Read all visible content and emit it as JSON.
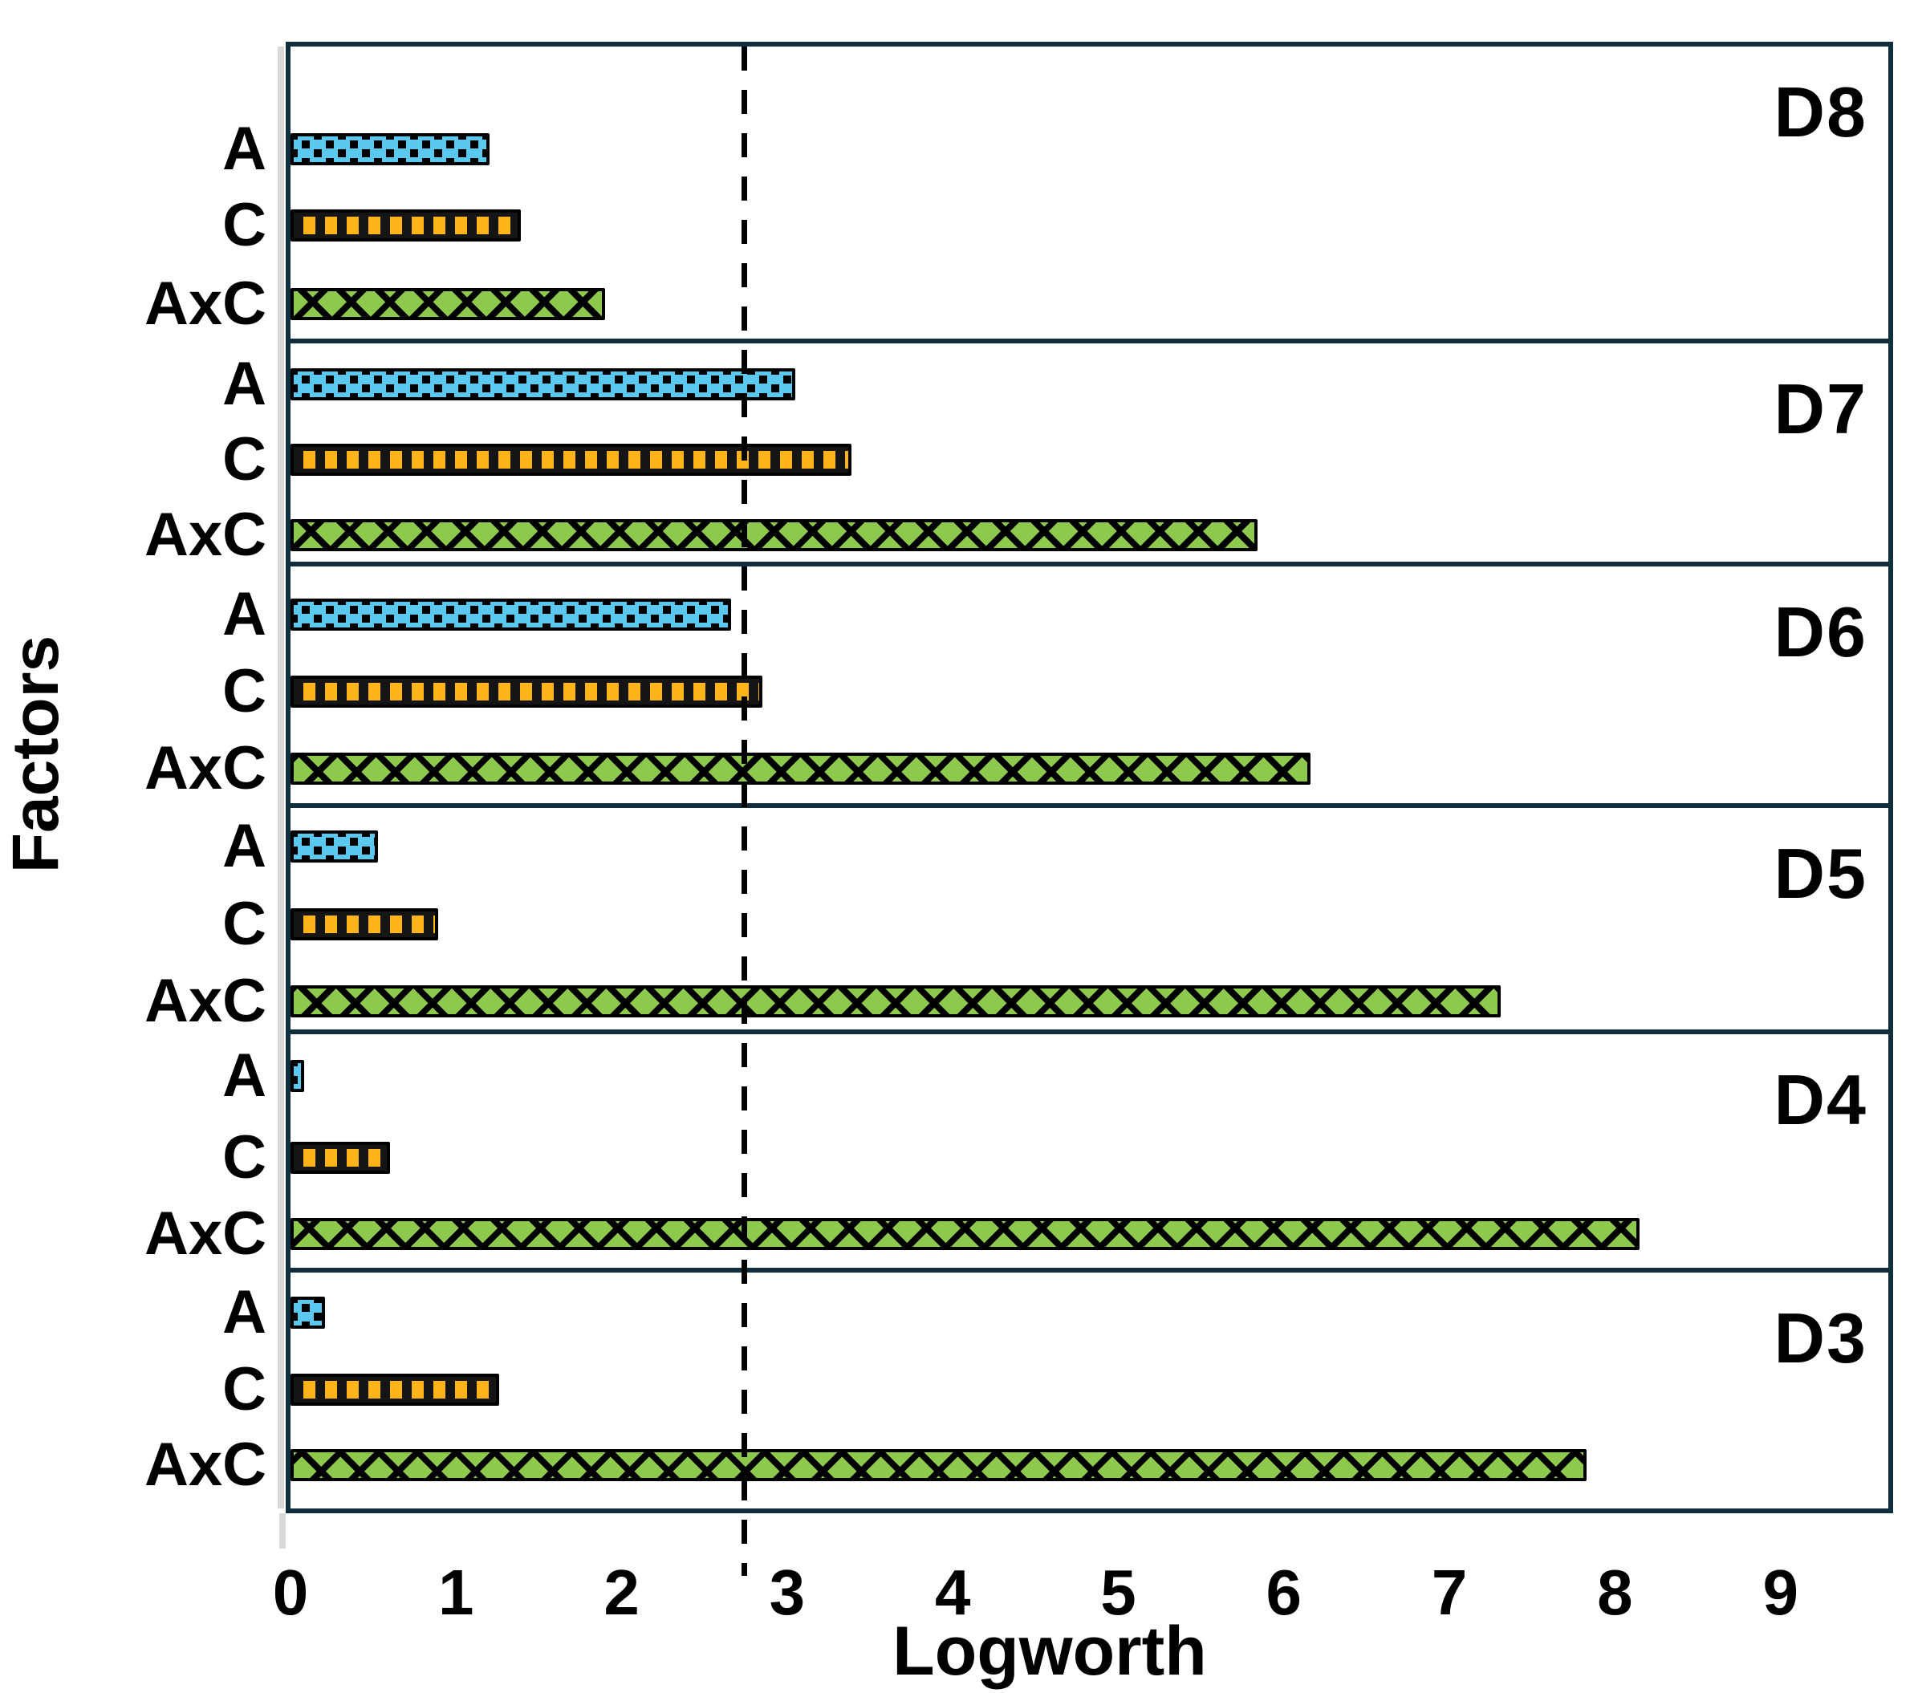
{
  "figure": {
    "xlabel": "Logworth",
    "ylabel": "Factors"
  },
  "chart_data": {
    "type": "bar",
    "orientation": "horizontal",
    "title": "",
    "xlabel": "Logworth",
    "ylabel": "Factors",
    "xlim": [
      0,
      9.65
    ],
    "x_ticks": [
      0,
      1,
      2,
      3,
      4,
      5,
      6,
      7,
      8,
      9
    ],
    "grid": false,
    "legend": false,
    "threshold_line": {
      "x": 2.74,
      "style": "dashed",
      "color": "#000000"
    },
    "categories": [
      "A",
      "C",
      "AxC"
    ],
    "series_colors": {
      "A": "#5bc8f0",
      "C": "#ffb51a",
      "AxC": "#8dc94d"
    },
    "series_patterns": {
      "A": "dotted-squares",
      "C": "vertical-stripes-on-black",
      "AxC": "diagonal-crosshatch"
    },
    "panels": [
      {
        "label": "D8",
        "values": {
          "A": 1.2,
          "C": 1.39,
          "AxC": 1.9
        }
      },
      {
        "label": "D7",
        "values": {
          "A": 3.05,
          "C": 3.39,
          "AxC": 5.84
        }
      },
      {
        "label": "D6",
        "values": {
          "A": 2.66,
          "C": 2.85,
          "AxC": 6.16
        }
      },
      {
        "label": "D5",
        "values": {
          "A": 0.53,
          "C": 0.89,
          "AxC": 7.31
        }
      },
      {
        "label": "D4",
        "values": {
          "A": 0.08,
          "C": 0.6,
          "AxC": 8.15
        }
      },
      {
        "label": "D3",
        "values": {
          "A": 0.21,
          "C": 1.26,
          "AxC": 7.83
        }
      }
    ]
  }
}
